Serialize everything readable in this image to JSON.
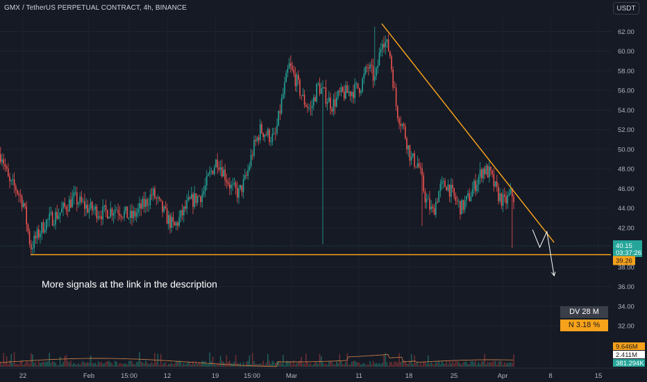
{
  "header": {
    "title": "GMX / TetherUS PERPETUAL CONTRACT, 4h, BINANCE",
    "currency": "USDT"
  },
  "annotation": "More signals at the link in the description",
  "badges": {
    "dv": "DV 28 M",
    "n": "N 3.18 %"
  },
  "price_scale": {
    "ticks": [
      "62.00",
      "60.00",
      "58.00",
      "56.00",
      "54.00",
      "52.00",
      "50.00",
      "48.00",
      "46.00",
      "44.00",
      "42.00",
      "38.00",
      "36.00",
      "34.00",
      "32.00"
    ],
    "current_price": "40.15",
    "countdown": "03:37:26",
    "support_price": "39.26"
  },
  "volume_scale": {
    "labels": [
      "9.646M",
      "2.411M",
      "381.294K"
    ]
  },
  "time_axis": {
    "labels": [
      "22",
      "Feb",
      "15:00",
      "12",
      "19",
      "15:00",
      "Mar",
      "11",
      "18",
      "25",
      "Apr",
      "8",
      "15"
    ]
  },
  "colors": {
    "background": "#161a25",
    "up": "#26a69a",
    "down": "#ef5350",
    "trendline": "#f7a21b",
    "text": "#d1d4dc",
    "current_price_badge": "#26a69a",
    "support_badge": "#f7a21b"
  },
  "chart_data": {
    "type": "candlestick",
    "symbol": "GMX / TetherUS PERPETUAL CONTRACT",
    "interval": "4h",
    "exchange": "BINANCE",
    "ylim": [
      31,
      63.3
    ],
    "close_path": [
      {
        "x": "Jan 19",
        "y": 49.5
      },
      {
        "x": "Jan 20",
        "y": 46.5
      },
      {
        "x": "Jan 21",
        "y": 46.0
      },
      {
        "x": "Jan 22",
        "y": 44.5
      },
      {
        "x": "Jan 23",
        "y": 40.0
      },
      {
        "x": "Jan 25",
        "y": 42.5
      },
      {
        "x": "Jan 27",
        "y": 43.5
      },
      {
        "x": "Jan 29",
        "y": 45.0
      },
      {
        "x": "Jan 31",
        "y": 44.0
      },
      {
        "x": "Feb 2",
        "y": 43.5
      },
      {
        "x": "Feb 4",
        "y": 44.0
      },
      {
        "x": "Feb 6",
        "y": 43.0
      },
      {
        "x": "Feb 8",
        "y": 44.5
      },
      {
        "x": "Feb 9",
        "y": 45.5
      },
      {
        "x": "Feb 11",
        "y": 43.0
      },
      {
        "x": "Feb 12",
        "y": 42.0
      },
      {
        "x": "Feb 14",
        "y": 44.5
      },
      {
        "x": "Feb 16",
        "y": 45.5
      },
      {
        "x": "Feb 17",
        "y": 47.5
      },
      {
        "x": "Feb 18",
        "y": 49.0
      },
      {
        "x": "Feb 20",
        "y": 46.0
      },
      {
        "x": "Feb 21",
        "y": 45.5
      },
      {
        "x": "Feb 22",
        "y": 47.0
      },
      {
        "x": "Feb 23",
        "y": 50.0
      },
      {
        "x": "Feb 24",
        "y": 52.0
      },
      {
        "x": "Feb 26",
        "y": 51.0
      },
      {
        "x": "Feb 27",
        "y": 55.0
      },
      {
        "x": "Feb 28",
        "y": 58.5
      },
      {
        "x": "Feb 29",
        "y": 57.0
      },
      {
        "x": "Mar 1",
        "y": 55.0
      },
      {
        "x": "Mar 2",
        "y": 54.0
      },
      {
        "x": "Mar 3",
        "y": 56.5
      },
      {
        "x": "Mar 4",
        "y": 55.5
      },
      {
        "x": "Mar 5",
        "y": 54.5
      },
      {
        "x": "Mar 6",
        "y": 55.5
      },
      {
        "x": "Mar 8",
        "y": 56.0
      },
      {
        "x": "Mar 9",
        "y": 56.5
      },
      {
        "x": "Mar 10",
        "y": 58.5
      },
      {
        "x": "Mar 11",
        "y": 57.0
      },
      {
        "x": "Mar 12",
        "y": 61.5
      },
      {
        "x": "Mar 13",
        "y": 60.0
      },
      {
        "x": "Mar 14",
        "y": 54.0
      },
      {
        "x": "Mar 15",
        "y": 52.0
      },
      {
        "x": "Mar 16",
        "y": 49.0
      },
      {
        "x": "Mar 17",
        "y": 48.5
      },
      {
        "x": "Mar 18",
        "y": 45.0
      },
      {
        "x": "Mar 19",
        "y": 43.5
      },
      {
        "x": "Mar 20",
        "y": 46.0
      },
      {
        "x": "Mar 21",
        "y": 46.5
      },
      {
        "x": "Mar 22",
        "y": 45.0
      },
      {
        "x": "Mar 23",
        "y": 44.0
      },
      {
        "x": "Mar 24",
        "y": 45.0
      },
      {
        "x": "Mar 25",
        "y": 46.5
      },
      {
        "x": "Mar 26",
        "y": 48.0
      },
      {
        "x": "Mar 27",
        "y": 47.5
      },
      {
        "x": "Mar 28",
        "y": 45.5
      },
      {
        "x": "Mar 29",
        "y": 44.5
      },
      {
        "x": "Mar 30",
        "y": 45.5
      },
      {
        "x": "Mar 31",
        "y": 44.0
      },
      {
        "x": "Apr 1",
        "y": 42.5
      },
      {
        "x": "Apr 2",
        "y": 40.15
      }
    ],
    "trendline": [
      {
        "x": "Mar 12",
        "y": 62.8
      },
      {
        "x": "Apr 5",
        "y": 40.5
      }
    ],
    "support_level": 39.26,
    "current_price": 40.15,
    "volume_scale_max": 9.646,
    "projection": [
      {
        "x": "Apr 2",
        "y": 41.8
      },
      {
        "x": "Apr 3",
        "y": 40.0
      },
      {
        "x": "Apr 4",
        "y": 41.6
      },
      {
        "x": "Apr 5",
        "y": 37.1
      }
    ]
  }
}
